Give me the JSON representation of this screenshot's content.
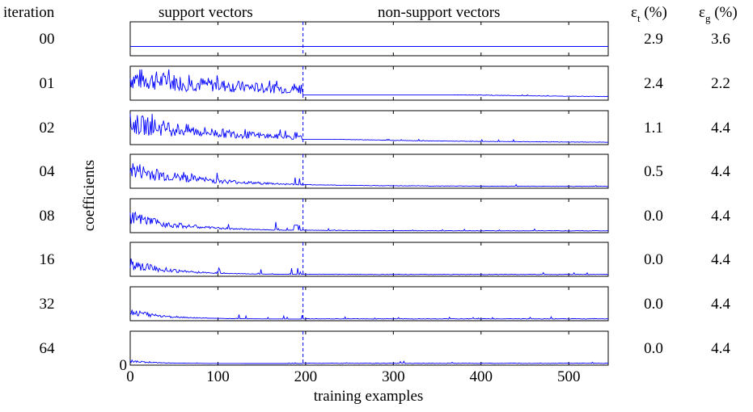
{
  "header": {
    "iteration": "iteration",
    "support": "support vectors",
    "nonsupport": "non-support vectors",
    "eps_t_symbol": "ε",
    "eps_t_sub": "t",
    "eps_t_unit": "(%)",
    "eps_g_symbol": "ε",
    "eps_g_sub": "g",
    "eps_g_unit": "(%)"
  },
  "chart_data": {
    "type": "line",
    "title": "",
    "xlabel": "training examples",
    "ylabel": "coefficients",
    "xlim": [
      0,
      545
    ],
    "xticks": [
      0,
      100,
      200,
      300,
      400,
      500
    ],
    "ytick_label": "0",
    "support_boundary_x": 197,
    "line_color": "#0000ff",
    "grid": false,
    "rows": [
      {
        "iteration": "00",
        "eps_t": "2.9",
        "eps_g": "3.6",
        "decay": 0.0,
        "amp": 0.0,
        "flat": 0.25
      },
      {
        "iteration": "01",
        "eps_t": "2.4",
        "eps_g": "2.2",
        "decay": 0.004,
        "amp": 0.85,
        "flat": 0
      },
      {
        "iteration": "02",
        "eps_t": "1.1",
        "eps_g": "4.4",
        "decay": 0.006,
        "amp": 0.8,
        "flat": 0
      },
      {
        "iteration": "04",
        "eps_t": "0.5",
        "eps_g": "4.4",
        "decay": 0.01,
        "amp": 0.7,
        "flat": 0
      },
      {
        "iteration": "08",
        "eps_t": "0.0",
        "eps_g": "4.4",
        "decay": 0.014,
        "amp": 0.55,
        "flat": 0
      },
      {
        "iteration": "16",
        "eps_t": "0.0",
        "eps_g": "4.4",
        "decay": 0.018,
        "amp": 0.45,
        "flat": 0
      },
      {
        "iteration": "32",
        "eps_t": "0.0",
        "eps_g": "4.4",
        "decay": 0.022,
        "amp": 0.3,
        "flat": 0
      },
      {
        "iteration": "64",
        "eps_t": "0.0",
        "eps_g": "4.4",
        "decay": 0.03,
        "amp": 0.1,
        "flat": 0
      }
    ]
  }
}
